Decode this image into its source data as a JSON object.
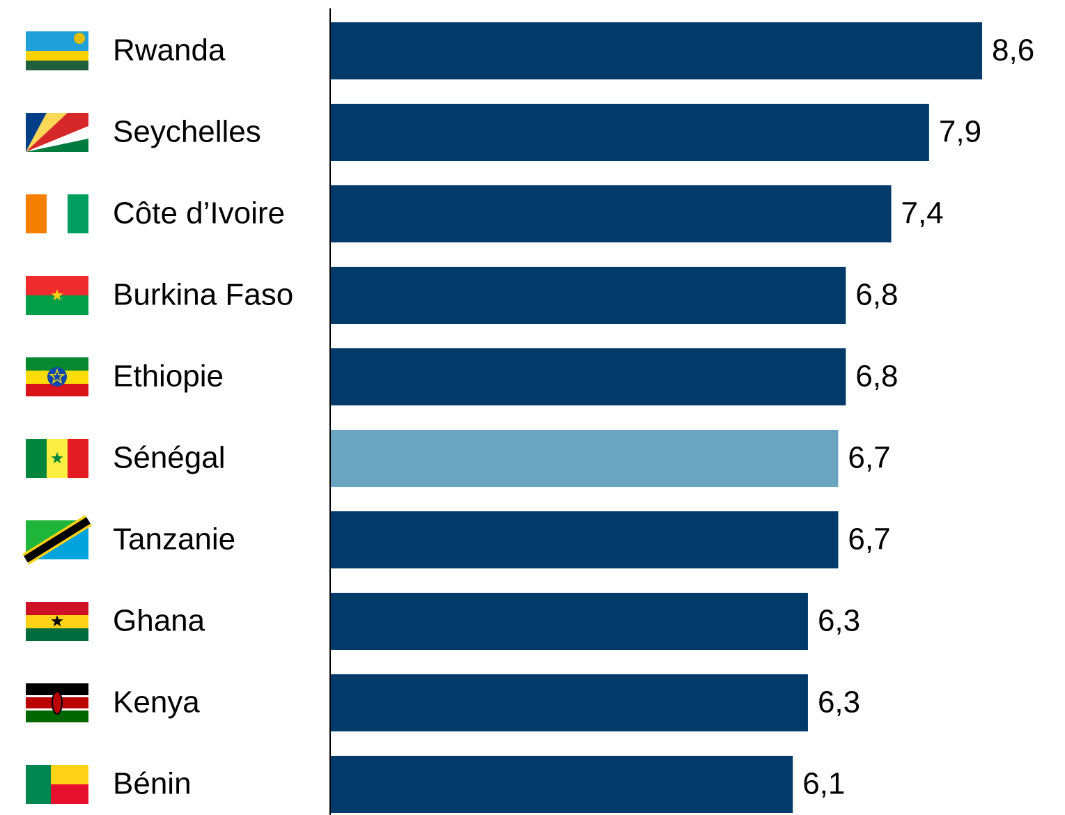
{
  "chart_data": {
    "type": "bar",
    "orientation": "horizontal",
    "categories": [
      "Rwanda",
      "Seychelles",
      "Côte d’Ivoire",
      "Burkina Faso",
      "Ethiopie",
      "Sénégal",
      "Tanzanie",
      "Ghana",
      "Kenya",
      "Bénin"
    ],
    "values": [
      8.6,
      7.9,
      7.4,
      6.8,
      6.8,
      6.7,
      6.7,
      6.3,
      6.3,
      6.1
    ],
    "value_labels": [
      "8,6",
      "7,9",
      "7,4",
      "6,8",
      "6,8",
      "6,7",
      "6,7",
      "6,3",
      "6,3",
      "6,1"
    ],
    "colors": [
      "#023a69",
      "#023a69",
      "#023a69",
      "#023a69",
      "#023a69",
      "#6aa4c1",
      "#023a69",
      "#023a69",
      "#023a69",
      "#023a69"
    ]
  }
}
